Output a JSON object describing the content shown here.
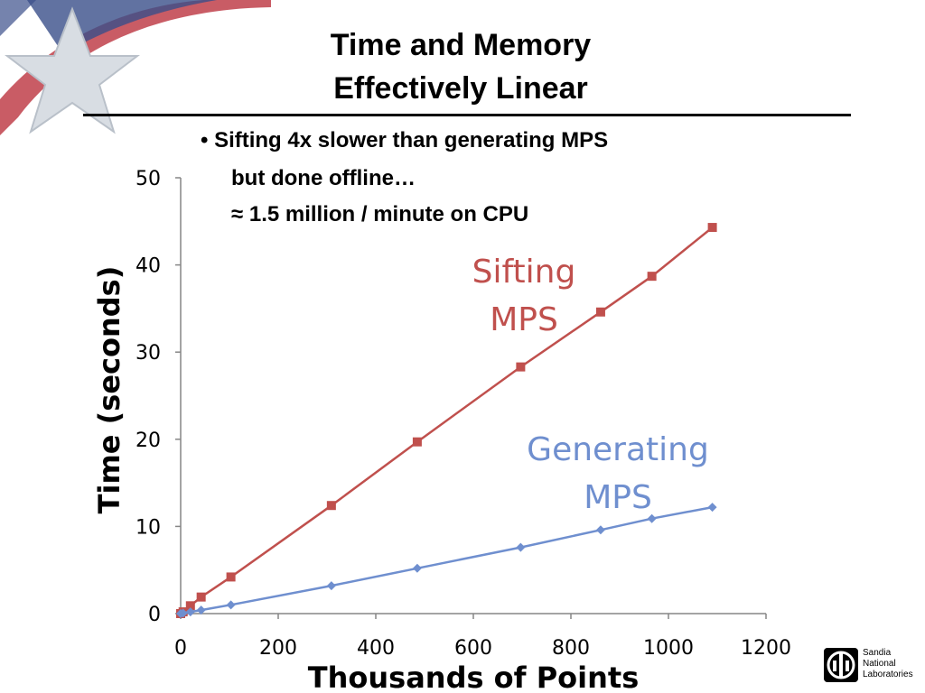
{
  "slide": {
    "title_line1": "Time and Memory",
    "title_line2": "Effectively Linear",
    "bullet_line1": "• Sifting 4x slower than generating MPS",
    "bullet_line2": "but done offline…",
    "bullet_line3": "≈ 1.5 million / minute on CPU"
  },
  "logo": {
    "text_lines": [
      "Sandia",
      "National",
      "Laboratories"
    ]
  },
  "chart_data": {
    "type": "scatter",
    "xlabel": "Thousands of Points",
    "ylabel": "Time (seconds)",
    "xlim": [
      0,
      1200
    ],
    "ylim": [
      0,
      50
    ],
    "xticks": [
      0,
      200,
      400,
      600,
      800,
      1000,
      1200
    ],
    "yticks": [
      0,
      10,
      20,
      30,
      40,
      50
    ],
    "grid": false,
    "series": [
      {
        "name": "Sifting MPS",
        "label_lines": [
          "Sifting",
          "MPS"
        ],
        "color": "#c0504d",
        "marker": "square",
        "x": [
          0,
          5,
          20,
          42,
          103,
          309,
          485,
          697,
          861,
          966,
          1090
        ],
        "y": [
          0,
          0.2,
          0.9,
          1.9,
          4.2,
          12.4,
          19.7,
          28.3,
          34.6,
          38.7,
          44.3
        ]
      },
      {
        "name": "Generating MPS",
        "label_lines": [
          "Generating",
          "MPS"
        ],
        "color": "#6f8fcf",
        "marker": "diamond",
        "x": [
          0,
          5,
          20,
          42,
          103,
          309,
          485,
          697,
          861,
          966,
          1090
        ],
        "y": [
          0,
          0.05,
          0.2,
          0.4,
          1.0,
          3.2,
          5.2,
          7.6,
          9.6,
          10.9,
          12.2
        ]
      }
    ]
  }
}
